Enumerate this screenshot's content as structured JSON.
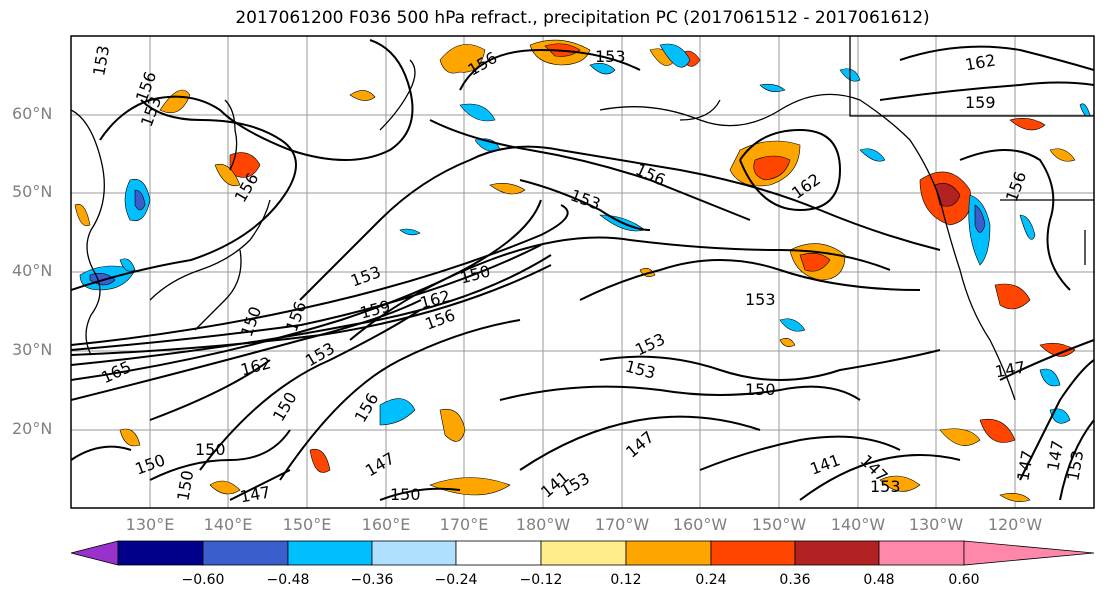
{
  "title": "2017061200 F036 500 hPa refract., precipitation PC (2017061512 - 2017061612)",
  "lat_labels": [
    "60°N",
    "50°N",
    "40°N",
    "30°N",
    "20°N"
  ],
  "lon_labels": [
    "130°E",
    "140°E",
    "150°E",
    "160°E",
    "170°E",
    "180°W",
    "170°W",
    "160°W",
    "150°W",
    "140°W",
    "130°W",
    "120°W"
  ],
  "colorbar": {
    "ticks": [
      "−0.60",
      "−0.48",
      "−0.36",
      "−0.24",
      "−0.12",
      "0.12",
      "0.24",
      "0.36",
      "0.48",
      "0.60"
    ],
    "colors": [
      "#9932cc",
      "#00008b",
      "#3a5fcd",
      "#00bfff",
      "#b0e0ff",
      "#ffffff",
      "#ffec8b",
      "#ffa500",
      "#ff4500",
      "#b22222",
      "#ff88aa"
    ]
  },
  "contour_labels": [
    "153",
    "156",
    "153",
    "153",
    "156",
    "153",
    "162",
    "159",
    "156",
    "162",
    "156",
    "156",
    "153",
    "150",
    "162",
    "153",
    "159",
    "156",
    "165",
    "162",
    "153",
    "156",
    "150",
    "150",
    "153",
    "147",
    "150",
    "153",
    "147",
    "147",
    "141",
    "147",
    "150",
    "153",
    "156",
    "147",
    "147",
    "141",
    "150",
    "153",
    "147",
    "150",
    "153",
    "150"
  ]
}
